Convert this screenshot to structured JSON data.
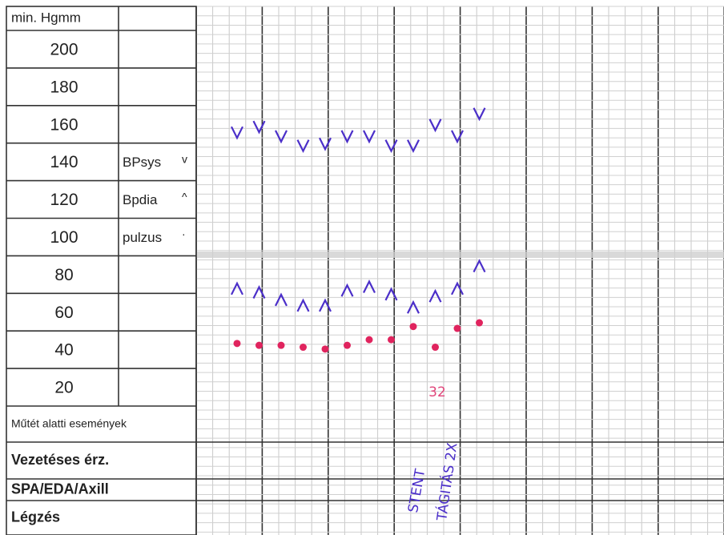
{
  "form": {
    "header": "min. Hgmm",
    "scale": [
      200,
      180,
      160,
      140,
      120,
      100,
      80,
      60,
      40,
      20
    ],
    "legend": [
      {
        "label": "BPsys",
        "symbol": "v"
      },
      {
        "label": "Bpdia",
        "symbol": "^"
      },
      {
        "label": "pulzus",
        "symbol": "·"
      }
    ],
    "sections": [
      "Műtét alatti események",
      "Vezetéses érz.",
      "SPA/EDA/Axill",
      "Légzés"
    ],
    "readings": {
      "systolic": [
        156,
        159,
        154,
        149,
        150,
        154,
        154,
        149,
        149,
        160,
        154,
        166
      ],
      "diastolic": [
        73,
        71,
        67,
        64,
        64,
        72,
        74,
        70,
        63,
        69,
        73,
        85
      ],
      "pulse": [
        44,
        43,
        43,
        42,
        41,
        43,
        46,
        46,
        53,
        42,
        52,
        55
      ]
    },
    "notes": [
      "32",
      "STENT",
      "TÁGITÁS 2X"
    ]
  }
}
